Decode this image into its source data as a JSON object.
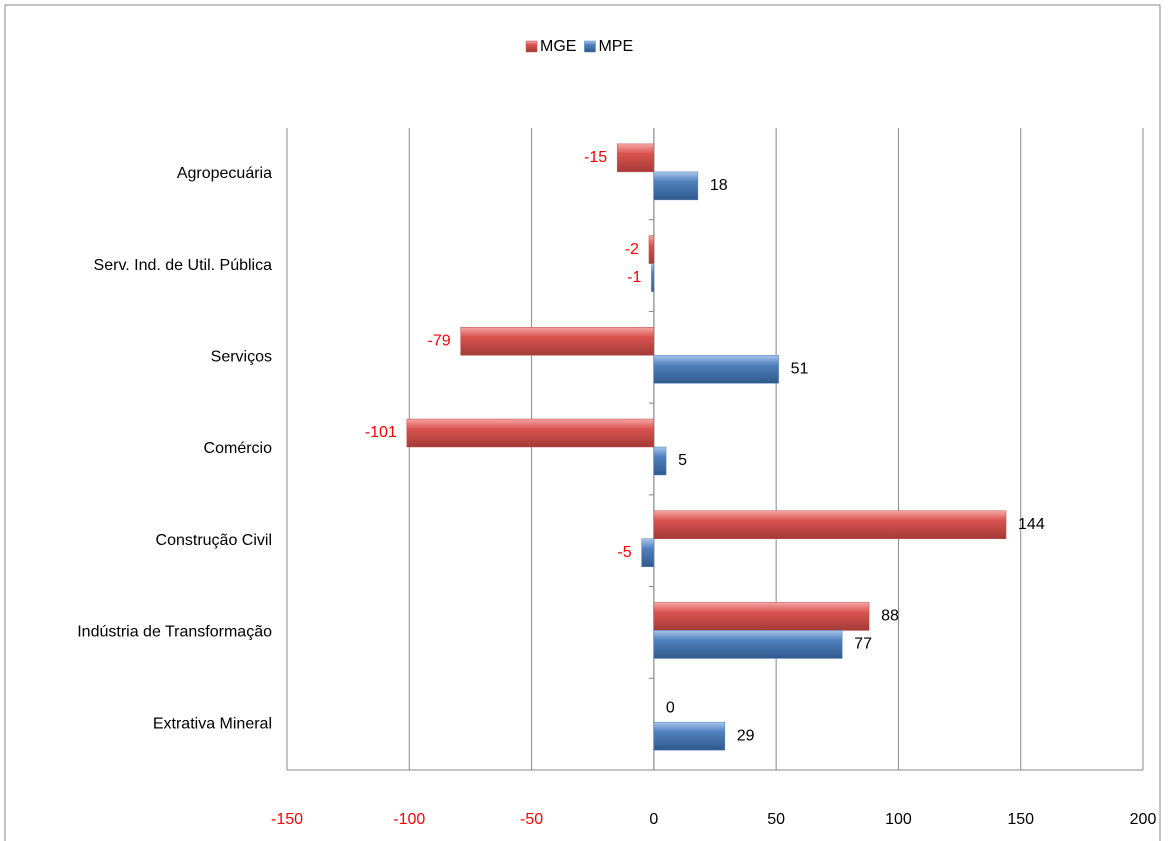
{
  "chart_data": {
    "type": "bar",
    "orientation": "horizontal",
    "categories": [
      "Agropecuária",
      "Serv. Ind. de Util.  Pública",
      "Serviços",
      "Comércio",
      "Construção Civil",
      "Indústria de Transformação",
      "Extrativa Mineral"
    ],
    "series": [
      {
        "name": "MGE",
        "color": "#c0504d",
        "values": [
          -15,
          -2,
          -79,
          -101,
          144,
          88,
          0
        ]
      },
      {
        "name": "MPE",
        "color": "#4f81bd",
        "values": [
          18,
          -1,
          51,
          5,
          -5,
          77,
          29
        ]
      }
    ],
    "xlim": [
      -150,
      200
    ],
    "xticks": [
      -150,
      -100,
      -50,
      0,
      50,
      100,
      150,
      200
    ],
    "grid": true,
    "legend": "top",
    "negative_label_color": "#ff0000"
  }
}
